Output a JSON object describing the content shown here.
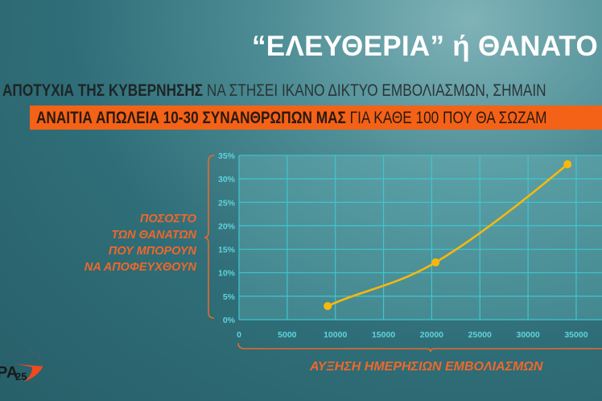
{
  "header": {
    "title": "“ΕΛΕΥΘΕΡΙΑ” ή ΘΑΝΑΤΟ",
    "line1_bold": "ΑΠΟΤΥΧΙΑ ΤΗΣ ΚΥΒΕΡΝΗΣΗΣ",
    "line1_rest": " ΝΑ ΣΤΗΣΕΙ ΙΚΑΝΟ ΔΙΚΤΥΟ ΕΜΒΟΛΙΑΣΜΩΝ, ΣΗΜΑΙΝ",
    "line2_bold": "ΑΝΑΙΤΙΑ ΑΠΩΛΕΙΑ 10-30 ΣΥΝΑΝΘΡΩΠΩΝ ΜΑΣ",
    "line2_rest": " ΓΙΑ ΚΑΘΕ 100 ΠΟΥ ΘΑ ΣΩΖΑΜ"
  },
  "logo": {
    "text": "PA25",
    "icon": "swallow-bird-icon",
    "color": "#f04a1e"
  },
  "colors": {
    "accent": "#f46217",
    "line": "#f7b80c",
    "grid": "#3fc6cf",
    "tick": "#5fd3dc"
  },
  "chart_data": {
    "type": "line",
    "ylabel_lines": [
      "ΠΟΣΟΣΤΟ",
      "ΤΩΝ ΘΑΝΑΤΩΝ",
      "ΠΟΥ ΜΠΟΡΟΥΝ",
      "ΝΑ ΑΠΟΦΕΥΧΘΟΥΝ"
    ],
    "xlabel": "ΑΥΞΗΣΗ ΗΜΕΡΗΣΙΩΝ ΕΜΒΟΛΙΑΣΜΩΝ",
    "xlim": [
      0,
      37500
    ],
    "ylim": [
      0,
      35
    ],
    "x_ticks": [
      "0",
      "5000",
      "10000",
      "15000",
      "20000",
      "25000",
      "30000",
      "35000"
    ],
    "y_ticks": [
      "0%",
      "5%",
      "10%",
      "15%",
      "20%",
      "25%",
      "30%",
      "35%"
    ],
    "grid": true,
    "x": [
      9200,
      20400,
      34100
    ],
    "y": [
      2.9,
      12.2,
      33.1
    ]
  }
}
